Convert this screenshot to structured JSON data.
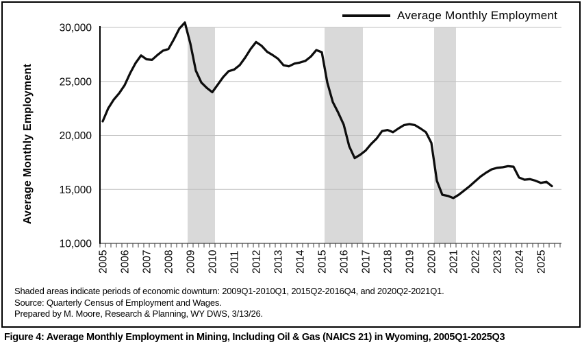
{
  "figure": {
    "caption": "Figure 4: Average Monthly Employment in Mining, Including Oil & Gas (NAICS 21) in Wyoming, 2005Q1-2025Q3"
  },
  "legend": {
    "label": "Average Monthly Employment"
  },
  "notes": {
    "line1": "Shaded areas indicate periods of economic downturn: 2009Q1-2010Q1, 2015Q2-2016Q4, and 2020Q2-2021Q1.",
    "line2": "Source: Quarterly Census of Employment and Wages.",
    "line3": "Prepared by M. Moore, Research & Planning, WY DWS, 3/13/26."
  },
  "chart_data": {
    "type": "line",
    "title": "",
    "xlabel": "",
    "ylabel": "Average Monthly Employment",
    "ylim": [
      10000,
      30000
    ],
    "y_tick_values": [
      10000,
      15000,
      20000,
      25000,
      30000
    ],
    "y_tick_labels": [
      "10,000",
      "15,000",
      "20,000",
      "25,000",
      "30,000"
    ],
    "x_tick_labels": [
      "2005",
      "2006",
      "2007",
      "2008",
      "2009",
      "2010",
      "2011",
      "2012",
      "2013",
      "2014",
      "2015",
      "2016",
      "2017",
      "2018",
      "2019",
      "2020",
      "2021",
      "2022",
      "2023",
      "2024",
      "2025"
    ],
    "grid": "horizontal",
    "legend_position": "top-right",
    "shaded_periods": [
      {
        "from": "2009Q1",
        "to": "2010Q1"
      },
      {
        "from": "2015Q2",
        "to": "2016Q4"
      },
      {
        "from": "2020Q2",
        "to": "2021Q1"
      }
    ],
    "colors": {
      "line": "#0d0d0d",
      "shading": "#d9d9d9",
      "gridline": "#bfbfbf",
      "axis": "#404040"
    },
    "series": [
      {
        "name": "Average Monthly Employment",
        "quarters": [
          "2005Q1",
          "2005Q2",
          "2005Q3",
          "2005Q4",
          "2006Q1",
          "2006Q2",
          "2006Q3",
          "2006Q4",
          "2007Q1",
          "2007Q2",
          "2007Q3",
          "2007Q4",
          "2008Q1",
          "2008Q2",
          "2008Q3",
          "2008Q4",
          "2009Q1",
          "2009Q2",
          "2009Q3",
          "2009Q4",
          "2010Q1",
          "2010Q2",
          "2010Q3",
          "2010Q4",
          "2011Q1",
          "2011Q2",
          "2011Q3",
          "2011Q4",
          "2012Q1",
          "2012Q2",
          "2012Q3",
          "2012Q4",
          "2013Q1",
          "2013Q2",
          "2013Q3",
          "2013Q4",
          "2014Q1",
          "2014Q2",
          "2014Q3",
          "2014Q4",
          "2015Q1",
          "2015Q2",
          "2015Q3",
          "2015Q4",
          "2016Q1",
          "2016Q2",
          "2016Q3",
          "2016Q4",
          "2017Q1",
          "2017Q2",
          "2017Q3",
          "2017Q4",
          "2018Q1",
          "2018Q2",
          "2018Q3",
          "2018Q4",
          "2019Q1",
          "2019Q2",
          "2019Q3",
          "2019Q4",
          "2020Q1",
          "2020Q2",
          "2020Q3",
          "2020Q4",
          "2021Q1",
          "2021Q2",
          "2021Q3",
          "2021Q4",
          "2022Q1",
          "2022Q2",
          "2022Q3",
          "2022Q4",
          "2023Q1",
          "2023Q2",
          "2023Q3",
          "2023Q4",
          "2024Q1",
          "2024Q2",
          "2024Q3",
          "2024Q4",
          "2025Q1",
          "2025Q2",
          "2025Q3"
        ],
        "values": [
          21300,
          22500,
          23300,
          23900,
          24650,
          25750,
          26700,
          27400,
          27050,
          27000,
          27450,
          27850,
          28000,
          28900,
          29900,
          30450,
          28500,
          26000,
          24900,
          24400,
          24000,
          24700,
          25400,
          25950,
          26100,
          26500,
          27200,
          28000,
          28650,
          28300,
          27750,
          27450,
          27100,
          26500,
          26400,
          26650,
          26750,
          26900,
          27300,
          27900,
          27700,
          24900,
          23100,
          22100,
          21000,
          19000,
          17900,
          18200,
          18600,
          19200,
          19700,
          20400,
          20500,
          20300,
          20650,
          20950,
          21050,
          20950,
          20650,
          20300,
          19300,
          15800,
          14500,
          14400,
          14200,
          14500,
          14900,
          15300,
          15750,
          16200,
          16550,
          16850,
          17000,
          17050,
          17150,
          17100,
          16100,
          15900,
          15950,
          15800,
          15600,
          15700,
          15300
        ]
      }
    ]
  }
}
